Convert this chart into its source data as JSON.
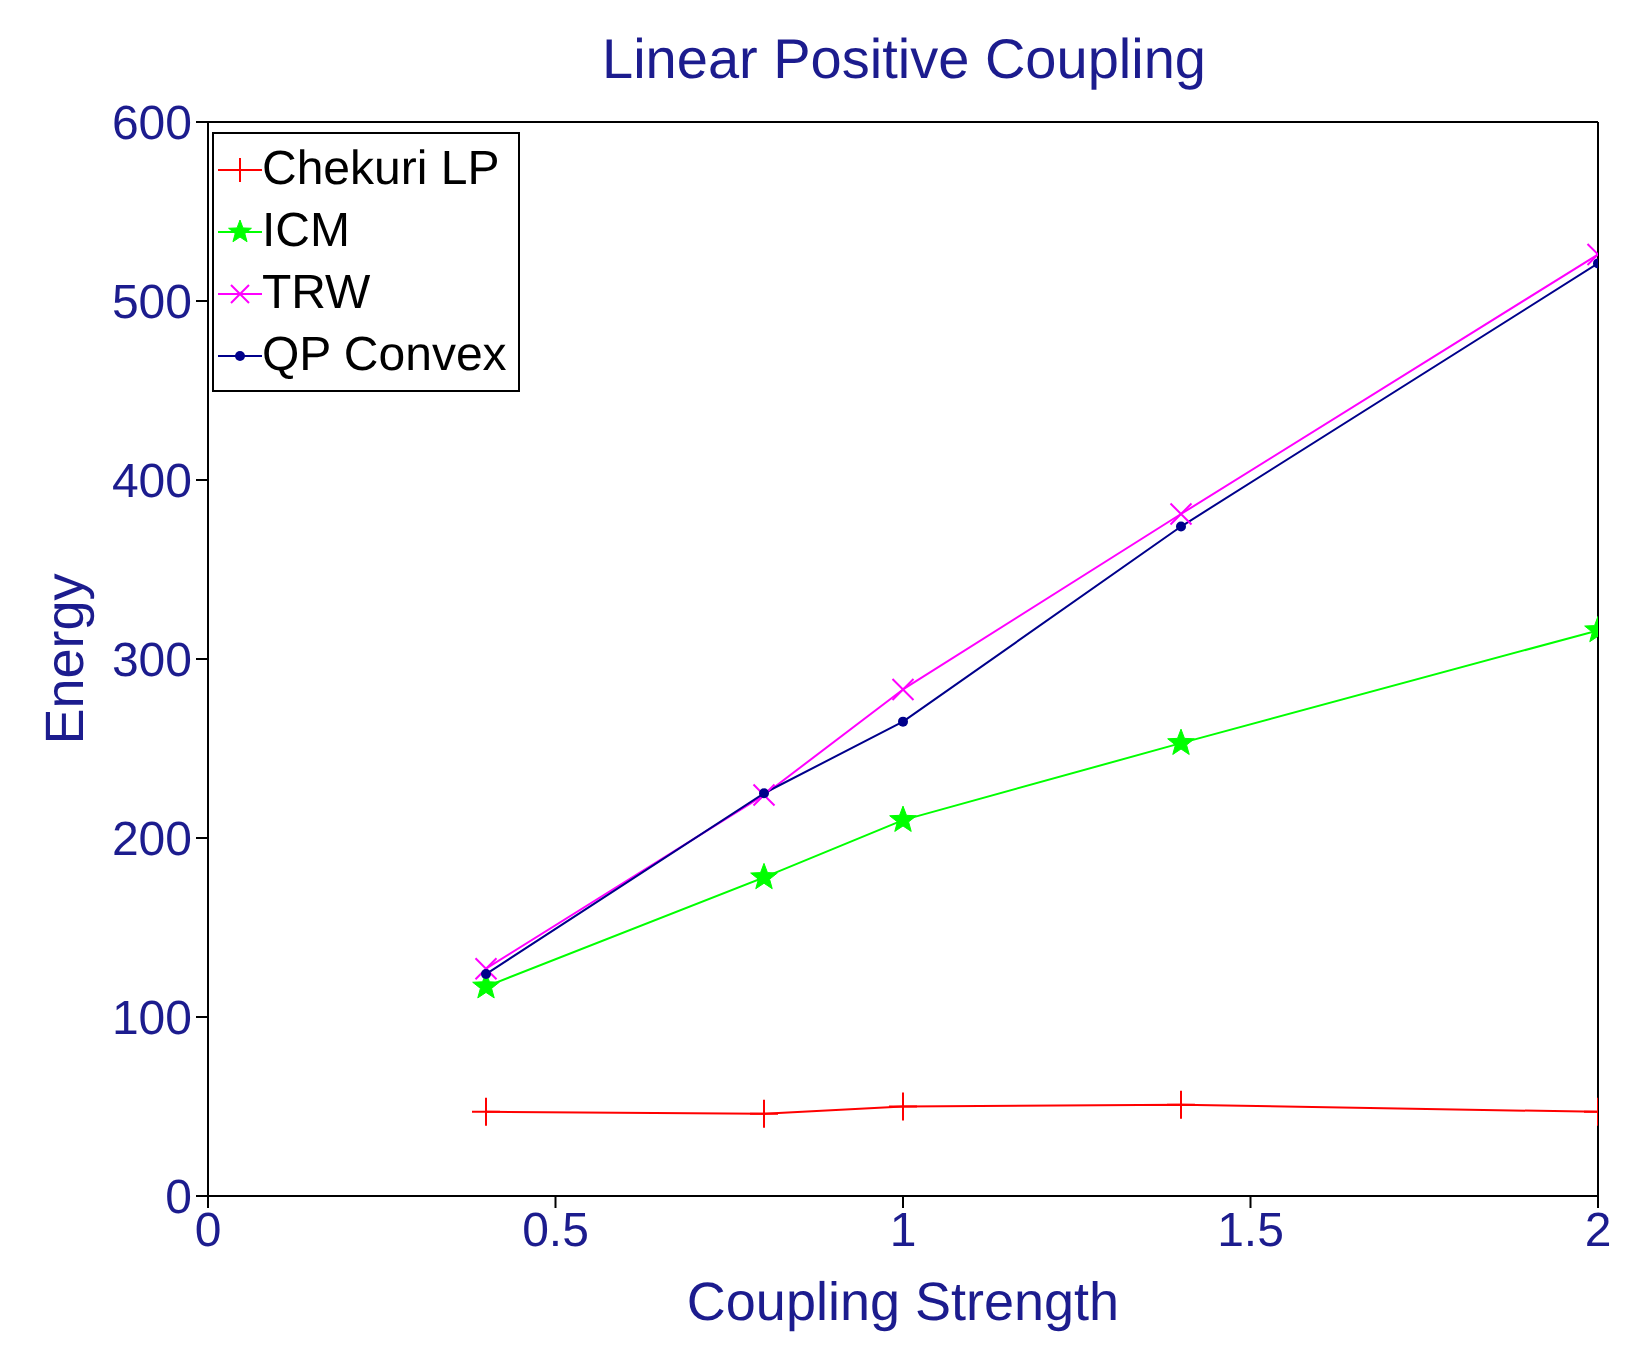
{
  "chart_data": {
    "type": "line",
    "title": "Linear Positive Coupling",
    "xlabel": "Coupling Strength",
    "ylabel": "Energy",
    "x": [
      0.4,
      0.8,
      1,
      1.4,
      2
    ],
    "series": [
      {
        "name": "Chekuri LP",
        "color": "#ff0000",
        "marker": "cross",
        "values": [
          47,
          46,
          50,
          51,
          47
        ]
      },
      {
        "name": "ICM",
        "color": "#00ff00",
        "marker": "star",
        "values": [
          117,
          178,
          210,
          253,
          316
        ]
      },
      {
        "name": "TRW",
        "color": "#ff00ff",
        "marker": "x",
        "values": [
          127,
          224,
          283,
          381,
          526
        ]
      },
      {
        "name": "QP Convex",
        "color": "#00008b",
        "marker": "circle",
        "values": [
          124,
          225,
          265,
          374,
          521
        ]
      }
    ],
    "xlim": [
      0,
      2
    ],
    "xticks": [
      0,
      0.5,
      1,
      1.5,
      2
    ],
    "ylim": [
      0,
      600
    ],
    "yticks": [
      0,
      100,
      200,
      300,
      400,
      500,
      600
    ],
    "grid": false,
    "legend": "top left"
  }
}
